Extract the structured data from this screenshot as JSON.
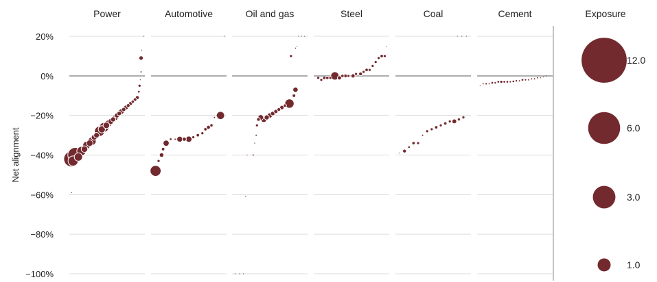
{
  "colors": {
    "bubble": "#722a2f",
    "bubble_stroke": "#ffffff",
    "grid": "#dddddd",
    "zero_line": "#aaaaaa",
    "divider": "#888888"
  },
  "chart_data": {
    "type": "scatter",
    "ylabel": "Net alignment",
    "ylim": [
      -1.0,
      0.2
    ],
    "y_ticks": [
      {
        "v": 0.2,
        "label": "20%"
      },
      {
        "v": 0.0,
        "label": "0%"
      },
      {
        "v": -0.2,
        "label": "−20%"
      },
      {
        "v": -0.4,
        "label": "−40%"
      },
      {
        "v": -0.6,
        "label": "−60%"
      },
      {
        "v": -0.8,
        "label": "−80%"
      },
      {
        "v": -1.0,
        "label": "−100%"
      }
    ],
    "grid": true,
    "legend_title": "Exposure",
    "legend": [
      {
        "label": "12.0",
        "value": 12.0
      },
      {
        "label": "6.0",
        "value": 6.0
      },
      {
        "label": "3.0",
        "value": 3.0
      },
      {
        "label": "1.0",
        "value": 1.0
      }
    ],
    "legend_placement": "right",
    "panels": [
      {
        "name": "Power",
        "points": [
          {
            "x": 0.03,
            "y": -0.59,
            "exposure": 0.01
          },
          {
            "x": 0.03,
            "y": -0.42,
            "exposure": 14.5
          },
          {
            "x": 0.05,
            "y": -0.43,
            "exposure": 6.0
          },
          {
            "x": 0.08,
            "y": -0.4,
            "exposure": 13.5
          },
          {
            "x": 0.12,
            "y": -0.41,
            "exposure": 4.0
          },
          {
            "x": 0.16,
            "y": -0.38,
            "exposure": 5.0
          },
          {
            "x": 0.2,
            "y": -0.37,
            "exposure": 2.5
          },
          {
            "x": 0.23,
            "y": -0.35,
            "exposure": 3.5
          },
          {
            "x": 0.27,
            "y": -0.34,
            "exposure": 2.5
          },
          {
            "x": 0.3,
            "y": -0.33,
            "exposure": 4.0
          },
          {
            "x": 0.33,
            "y": -0.31,
            "exposure": 2.0
          },
          {
            "x": 0.36,
            "y": -0.3,
            "exposure": 1.8
          },
          {
            "x": 0.4,
            "y": -0.28,
            "exposure": 6.0
          },
          {
            "x": 0.43,
            "y": -0.27,
            "exposure": 3.0
          },
          {
            "x": 0.46,
            "y": -0.26,
            "exposure": 5.5
          },
          {
            "x": 0.49,
            "y": -0.25,
            "exposure": 2.5
          },
          {
            "x": 0.52,
            "y": -0.24,
            "exposure": 2.8
          },
          {
            "x": 0.55,
            "y": -0.23,
            "exposure": 2.0
          },
          {
            "x": 0.58,
            "y": -0.22,
            "exposure": 1.5
          },
          {
            "x": 0.61,
            "y": -0.21,
            "exposure": 2.0
          },
          {
            "x": 0.63,
            "y": -0.2,
            "exposure": 1.5
          },
          {
            "x": 0.66,
            "y": -0.19,
            "exposure": 1.2
          },
          {
            "x": 0.69,
            "y": -0.18,
            "exposure": 1.8
          },
          {
            "x": 0.72,
            "y": -0.17,
            "exposure": 1.0
          },
          {
            "x": 0.75,
            "y": -0.16,
            "exposure": 1.3
          },
          {
            "x": 0.78,
            "y": -0.15,
            "exposure": 0.8
          },
          {
            "x": 0.81,
            "y": -0.14,
            "exposure": 0.9
          },
          {
            "x": 0.84,
            "y": -0.13,
            "exposure": 0.6
          },
          {
            "x": 0.87,
            "y": -0.12,
            "exposure": 0.7
          },
          {
            "x": 0.9,
            "y": -0.11,
            "exposure": 0.9
          },
          {
            "x": 0.92,
            "y": -0.08,
            "exposure": 0.2
          },
          {
            "x": 0.93,
            "y": -0.05,
            "exposure": 0.3
          },
          {
            "x": 0.94,
            "y": -0.02,
            "exposure": 0.05
          },
          {
            "x": 0.95,
            "y": 0.02,
            "exposure": 0.1
          },
          {
            "x": 0.95,
            "y": 0.09,
            "exposure": 1.1
          },
          {
            "x": 0.96,
            "y": 0.13,
            "exposure": 0.02
          },
          {
            "x": 0.98,
            "y": 0.2,
            "exposure": 0.01
          }
        ]
      },
      {
        "name": "Automotive",
        "points": [
          {
            "x": 0.06,
            "y": -0.48,
            "exposure": 7.0
          },
          {
            "x": 0.1,
            "y": -0.43,
            "exposure": 0.3
          },
          {
            "x": 0.14,
            "y": -0.4,
            "exposure": 1.2
          },
          {
            "x": 0.16,
            "y": -0.37,
            "exposure": 0.4
          },
          {
            "x": 0.2,
            "y": -0.34,
            "exposure": 2.2
          },
          {
            "x": 0.26,
            "y": -0.32,
            "exposure": 0.2
          },
          {
            "x": 0.32,
            "y": -0.32,
            "exposure": 0.1
          },
          {
            "x": 0.38,
            "y": -0.32,
            "exposure": 2.0
          },
          {
            "x": 0.44,
            "y": -0.32,
            "exposure": 1.0
          },
          {
            "x": 0.5,
            "y": -0.32,
            "exposure": 2.3
          },
          {
            "x": 0.56,
            "y": -0.31,
            "exposure": 0.5
          },
          {
            "x": 0.62,
            "y": -0.3,
            "exposure": 0.4
          },
          {
            "x": 0.68,
            "y": -0.29,
            "exposure": 0.3
          },
          {
            "x": 0.72,
            "y": -0.27,
            "exposure": 0.4
          },
          {
            "x": 0.76,
            "y": -0.26,
            "exposure": 0.9
          },
          {
            "x": 0.8,
            "y": -0.25,
            "exposure": 0.6
          },
          {
            "x": 0.84,
            "y": -0.21,
            "exposure": 0.1
          },
          {
            "x": 0.88,
            "y": -0.2,
            "exposure": 0.2
          },
          {
            "x": 0.92,
            "y": -0.2,
            "exposure": 3.8
          },
          {
            "x": 0.97,
            "y": 0.2,
            "exposure": 0.01
          }
        ]
      },
      {
        "name": "Oil and gas",
        "points": [
          {
            "x": 0.04,
            "y": -1.0,
            "exposure": 0.01
          },
          {
            "x": 0.1,
            "y": -1.0,
            "exposure": 0.01
          },
          {
            "x": 0.15,
            "y": -1.0,
            "exposure": 0.01
          },
          {
            "x": 0.18,
            "y": -0.61,
            "exposure": 0.01
          },
          {
            "x": 0.2,
            "y": -0.4,
            "exposure": 0.05
          },
          {
            "x": 0.28,
            "y": -0.4,
            "exposure": 0.1
          },
          {
            "x": 0.3,
            "y": -0.34,
            "exposure": 0.05
          },
          {
            "x": 0.32,
            "y": -0.3,
            "exposure": 0.1
          },
          {
            "x": 0.33,
            "y": -0.25,
            "exposure": 0.3
          },
          {
            "x": 0.35,
            "y": -0.22,
            "exposure": 0.8
          },
          {
            "x": 0.38,
            "y": -0.21,
            "exposure": 1.8
          },
          {
            "x": 0.42,
            "y": -0.22,
            "exposure": 2.2
          },
          {
            "x": 0.46,
            "y": -0.21,
            "exposure": 1.5
          },
          {
            "x": 0.5,
            "y": -0.2,
            "exposure": 1.6
          },
          {
            "x": 0.54,
            "y": -0.19,
            "exposure": 1.2
          },
          {
            "x": 0.58,
            "y": -0.18,
            "exposure": 1.0
          },
          {
            "x": 0.62,
            "y": -0.17,
            "exposure": 0.8
          },
          {
            "x": 0.66,
            "y": -0.16,
            "exposure": 1.1
          },
          {
            "x": 0.7,
            "y": -0.15,
            "exposure": 0.6
          },
          {
            "x": 0.76,
            "y": -0.14,
            "exposure": 5.0
          },
          {
            "x": 0.82,
            "y": -0.1,
            "exposure": 0.7
          },
          {
            "x": 0.84,
            "y": -0.07,
            "exposure": 1.6
          },
          {
            "x": 0.78,
            "y": 0.1,
            "exposure": 0.3
          },
          {
            "x": 0.84,
            "y": 0.14,
            "exposure": 0.05
          },
          {
            "x": 0.86,
            "y": 0.15,
            "exposure": 0.02
          },
          {
            "x": 0.88,
            "y": 0.2,
            "exposure": 0.01
          },
          {
            "x": 0.92,
            "y": 0.2,
            "exposure": 0.01
          },
          {
            "x": 0.96,
            "y": 0.2,
            "exposure": 0.01
          }
        ]
      },
      {
        "name": "Steel",
        "points": [
          {
            "x": 0.06,
            "y": -0.01,
            "exposure": 0.3
          },
          {
            "x": 0.1,
            "y": -0.02,
            "exposure": 0.5
          },
          {
            "x": 0.14,
            "y": -0.01,
            "exposure": 0.4
          },
          {
            "x": 0.18,
            "y": -0.01,
            "exposure": 0.6
          },
          {
            "x": 0.22,
            "y": -0.01,
            "exposure": 0.5
          },
          {
            "x": 0.28,
            "y": 0.0,
            "exposure": 4.0
          },
          {
            "x": 0.34,
            "y": -0.01,
            "exposure": 1.0
          },
          {
            "x": 0.38,
            "y": 0.0,
            "exposure": 0.6
          },
          {
            "x": 0.42,
            "y": 0.0,
            "exposure": 0.8
          },
          {
            "x": 0.46,
            "y": 0.0,
            "exposure": 0.5
          },
          {
            "x": 0.52,
            "y": 0.0,
            "exposure": 1.0
          },
          {
            "x": 0.56,
            "y": 0.01,
            "exposure": 0.5
          },
          {
            "x": 0.62,
            "y": 0.01,
            "exposure": 0.8
          },
          {
            "x": 0.66,
            "y": 0.02,
            "exposure": 0.5
          },
          {
            "x": 0.7,
            "y": 0.03,
            "exposure": 0.4
          },
          {
            "x": 0.74,
            "y": 0.03,
            "exposure": 0.5
          },
          {
            "x": 0.78,
            "y": 0.05,
            "exposure": 0.5
          },
          {
            "x": 0.82,
            "y": 0.07,
            "exposure": 0.3
          },
          {
            "x": 0.86,
            "y": 0.09,
            "exposure": 0.3
          },
          {
            "x": 0.9,
            "y": 0.1,
            "exposure": 0.4
          },
          {
            "x": 0.94,
            "y": 0.1,
            "exposure": 0.5
          },
          {
            "x": 0.96,
            "y": 0.15,
            "exposure": 0.02
          }
        ]
      },
      {
        "name": "Coal",
        "points": [
          {
            "x": 0.05,
            "y": -0.39,
            "exposure": 0.03
          },
          {
            "x": 0.12,
            "y": -0.38,
            "exposure": 0.8
          },
          {
            "x": 0.18,
            "y": -0.36,
            "exposure": 0.2
          },
          {
            "x": 0.24,
            "y": -0.34,
            "exposure": 0.4
          },
          {
            "x": 0.3,
            "y": -0.34,
            "exposure": 0.5
          },
          {
            "x": 0.36,
            "y": -0.3,
            "exposure": 0.1
          },
          {
            "x": 0.42,
            "y": -0.28,
            "exposure": 0.3
          },
          {
            "x": 0.48,
            "y": -0.27,
            "exposure": 0.5
          },
          {
            "x": 0.54,
            "y": -0.26,
            "exposure": 0.4
          },
          {
            "x": 0.6,
            "y": -0.25,
            "exposure": 0.5
          },
          {
            "x": 0.66,
            "y": -0.24,
            "exposure": 0.4
          },
          {
            "x": 0.72,
            "y": -0.23,
            "exposure": 0.3
          },
          {
            "x": 0.78,
            "y": -0.23,
            "exposure": 1.3
          },
          {
            "x": 0.84,
            "y": -0.22,
            "exposure": 0.3
          },
          {
            "x": 0.9,
            "y": -0.21,
            "exposure": 0.3
          },
          {
            "x": 0.82,
            "y": 0.2,
            "exposure": 0.01
          },
          {
            "x": 0.88,
            "y": 0.2,
            "exposure": 0.01
          },
          {
            "x": 0.94,
            "y": 0.2,
            "exposure": 0.01
          }
        ]
      },
      {
        "name": "Cement",
        "points": [
          {
            "x": 0.04,
            "y": -0.05,
            "exposure": 0.05
          },
          {
            "x": 0.08,
            "y": -0.04,
            "exposure": 0.1
          },
          {
            "x": 0.12,
            "y": -0.04,
            "exposure": 0.15
          },
          {
            "x": 0.16,
            "y": -0.04,
            "exposure": 0.1
          },
          {
            "x": 0.2,
            "y": -0.035,
            "exposure": 0.2
          },
          {
            "x": 0.24,
            "y": -0.035,
            "exposure": 0.15
          },
          {
            "x": 0.28,
            "y": -0.03,
            "exposure": 0.2
          },
          {
            "x": 0.32,
            "y": -0.03,
            "exposure": 0.3
          },
          {
            "x": 0.36,
            "y": -0.03,
            "exposure": 0.2
          },
          {
            "x": 0.4,
            "y": -0.03,
            "exposure": 0.2
          },
          {
            "x": 0.44,
            "y": -0.03,
            "exposure": 0.15
          },
          {
            "x": 0.48,
            "y": -0.028,
            "exposure": 0.2
          },
          {
            "x": 0.52,
            "y": -0.025,
            "exposure": 0.15
          },
          {
            "x": 0.56,
            "y": -0.025,
            "exposure": 0.1
          },
          {
            "x": 0.6,
            "y": -0.02,
            "exposure": 0.2
          },
          {
            "x": 0.64,
            "y": -0.02,
            "exposure": 0.15
          },
          {
            "x": 0.68,
            "y": -0.02,
            "exposure": 0.1
          },
          {
            "x": 0.72,
            "y": -0.015,
            "exposure": 0.1
          },
          {
            "x": 0.76,
            "y": -0.015,
            "exposure": 0.1
          },
          {
            "x": 0.8,
            "y": -0.01,
            "exposure": 0.1
          },
          {
            "x": 0.84,
            "y": -0.01,
            "exposure": 0.05
          },
          {
            "x": 0.88,
            "y": -0.005,
            "exposure": 0.05
          },
          {
            "x": 0.92,
            "y": 0.0,
            "exposure": 0.02
          }
        ]
      }
    ]
  }
}
